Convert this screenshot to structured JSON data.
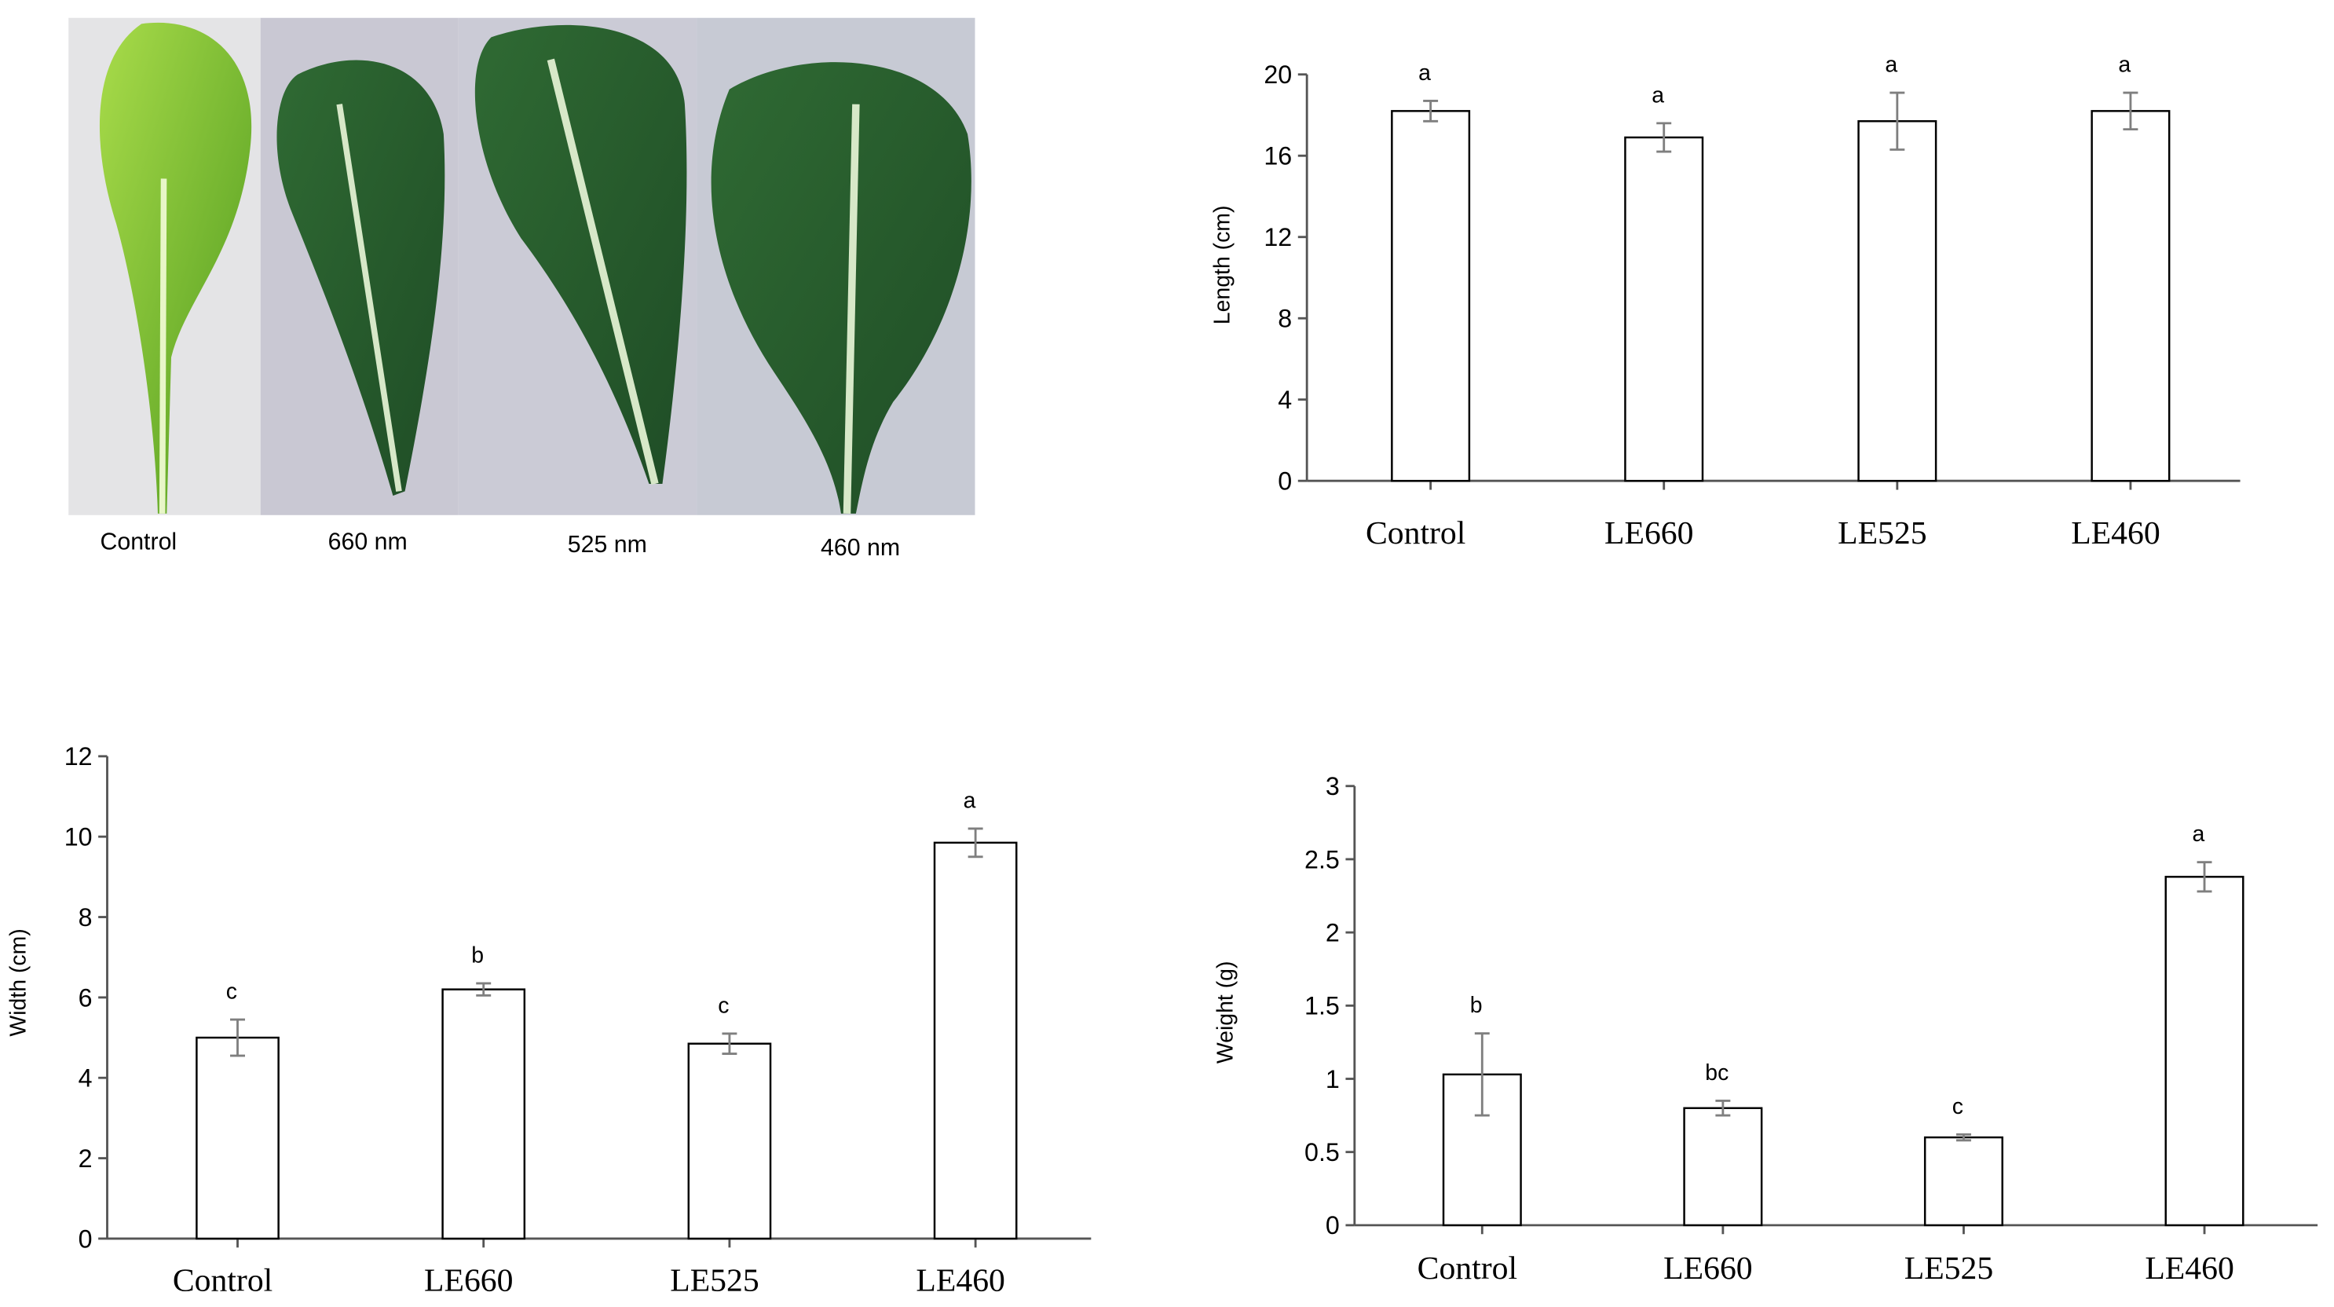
{
  "photo_panel": {
    "labels": [
      "Control",
      "660 nm",
      "525 nm",
      "460 nm"
    ]
  },
  "chart_data": [
    {
      "type": "bar",
      "y_label": "Length (cm)",
      "categories": [
        "Control",
        "LE660",
        "LE525",
        "LE460"
      ],
      "values": [
        18.2,
        16.9,
        17.7,
        18.2
      ],
      "errors": [
        0.5,
        0.7,
        1.4,
        0.9
      ],
      "annotations": [
        "a",
        "a",
        "a",
        "a"
      ],
      "color": "#ffffff",
      "edge_color": "#000000",
      "error_color": "#7f7f7f",
      "ylim": [
        0,
        20
      ],
      "yticks": [
        0,
        4,
        8,
        12,
        16,
        20
      ]
    },
    {
      "type": "bar",
      "y_label": "Width (cm)",
      "categories": [
        "Control",
        "LE660",
        "LE525",
        "LE460"
      ],
      "values": [
        5.0,
        6.2,
        4.85,
        9.85
      ],
      "errors": [
        0.45,
        0.15,
        0.25,
        0.35
      ],
      "annotations": [
        "c",
        "b",
        "c",
        "a"
      ],
      "color": "#ffffff",
      "edge_color": "#000000",
      "error_color": "#7f7f7f",
      "ylim": [
        0,
        12
      ],
      "yticks": [
        0,
        2,
        4,
        6,
        8,
        10,
        12
      ]
    },
    {
      "type": "bar",
      "y_label": "Weight (g)",
      "categories": [
        "Control",
        "LE660",
        "LE525",
        "LE460"
      ],
      "values": [
        1.03,
        0.8,
        0.6,
        2.38
      ],
      "errors": [
        0.28,
        0.05,
        0.02,
        0.1
      ],
      "annotations": [
        "b",
        "bc",
        "c",
        "a"
      ],
      "color": "#ffffff",
      "edge_color": "#000000",
      "error_color": "#7f7f7f",
      "ylim": [
        0,
        3
      ],
      "yticks": [
        0,
        0.5,
        1,
        1.5,
        2,
        2.5,
        3
      ]
    }
  ]
}
